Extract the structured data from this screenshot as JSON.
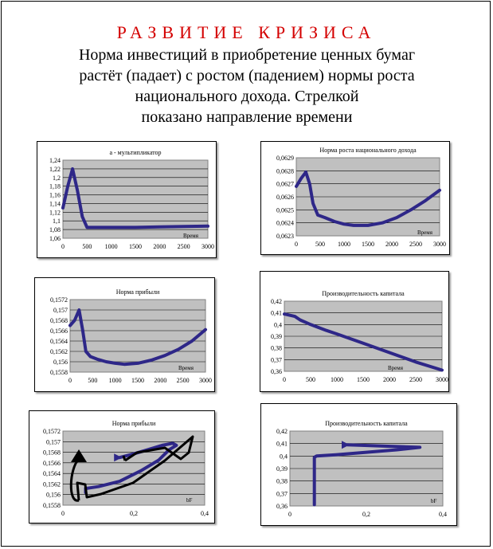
{
  "header": {
    "title": "РАЗВИТИЕ КРИЗИСА",
    "lines": [
      "Норма  инвестиций  в приобретение ценных  бумаг",
      "растёт (падает) с ростом (падением)  нормы роста",
      "национального  дохода. Стрелкой",
      "показано  направление  времени"
    ]
  },
  "chart_data": [
    {
      "type": "line",
      "title": "a - мультипликатор",
      "xlabel": "Время",
      "ylabel": "",
      "xlim": [
        0,
        3000
      ],
      "ylim": [
        1.06,
        1.24
      ],
      "x_ticks": [
        "0",
        "500",
        "1000",
        "1500",
        "2000",
        "2500",
        "3000"
      ],
      "y_ticks": [
        "1,06",
        "1,08",
        "1,1",
        "1,12",
        "1,14",
        "1,16",
        "1,18",
        "1,2",
        "1,22",
        "1,24"
      ],
      "series": [
        {
          "x": [
            0,
            100,
            200,
            300,
            400,
            500,
            600,
            1000,
            1500,
            2000,
            2500,
            3000
          ],
          "y": [
            1.13,
            1.18,
            1.22,
            1.17,
            1.11,
            1.085,
            1.085,
            1.085,
            1.085,
            1.086,
            1.087,
            1.088
          ]
        }
      ]
    },
    {
      "type": "line",
      "title": "Норма роста национального дохода",
      "xlabel": "Время",
      "ylabel": "",
      "xlim": [
        0,
        3000
      ],
      "ylim": [
        0.0623,
        0.0629
      ],
      "x_ticks": [
        "0",
        "500",
        "1000",
        "1500",
        "2000",
        "2500",
        "3000"
      ],
      "y_ticks": [
        "0,0623",
        "0,0624",
        "0,0625",
        "0,0626",
        "0,0627",
        "0,0628",
        "0,0629"
      ],
      "series": [
        {
          "x": [
            0,
            100,
            200,
            280,
            350,
            450,
            600,
            800,
            1000,
            1200,
            1500,
            1800,
            2100,
            2400,
            2700,
            3000
          ],
          "y": [
            0.06268,
            0.06274,
            0.06279,
            0.0627,
            0.06255,
            0.06246,
            0.06244,
            0.06241,
            0.06239,
            0.06238,
            0.06238,
            0.0624,
            0.06244,
            0.0625,
            0.06257,
            0.06265
          ]
        }
      ]
    },
    {
      "type": "line",
      "title": "Норма прибыли",
      "xlabel": "Время",
      "ylabel": "",
      "xlim": [
        0,
        3000
      ],
      "ylim": [
        0.1558,
        0.1572
      ],
      "x_ticks": [
        "0",
        "500",
        "1000",
        "1500",
        "2000",
        "2500",
        "3000"
      ],
      "y_ticks": [
        "0,1558",
        "0,156",
        "0,1562",
        "0,1564",
        "0,1566",
        "0,1568",
        "0,157",
        "0,1572"
      ],
      "series": [
        {
          "x": [
            0,
            100,
            200,
            280,
            350,
            450,
            600,
            800,
            1000,
            1200,
            1500,
            1800,
            2100,
            2400,
            2700,
            3000
          ],
          "y": [
            0.1567,
            0.1568,
            0.157,
            0.1566,
            0.1562,
            0.1561,
            0.15605,
            0.156,
            0.15597,
            0.15595,
            0.15597,
            0.15603,
            0.15612,
            0.15624,
            0.1564,
            0.15662
          ]
        }
      ]
    },
    {
      "type": "line",
      "title": "Производительность капитала",
      "xlabel": "Время",
      "ylabel": "",
      "xlim": [
        0,
        3000
      ],
      "ylim": [
        0.36,
        0.42
      ],
      "x_ticks": [
        "0",
        "500",
        "1000",
        "1500",
        "2000",
        "2500",
        "3000"
      ],
      "y_ticks": [
        "0,36",
        "0,37",
        "0,38",
        "0,39",
        "0,4",
        "0,41",
        "0,42"
      ],
      "series": [
        {
          "x": [
            0,
            100,
            200,
            300,
            500,
            800,
            1000,
            1500,
            2000,
            2500,
            3000
          ],
          "y": [
            0.409,
            0.408,
            0.407,
            0.404,
            0.4,
            0.395,
            0.392,
            0.384,
            0.376,
            0.368,
            0.361
          ]
        }
      ]
    },
    {
      "type": "line",
      "title": "Норма прибыли",
      "xlabel": "bF",
      "ylabel": "",
      "xlim": [
        0,
        0.4
      ],
      "ylim": [
        0.1558,
        0.1572
      ],
      "x_ticks": [
        "0",
        "0,2",
        "0,4"
      ],
      "y_ticks": [
        "0,1558",
        "0,156",
        "0,1562",
        "0,1564",
        "0,1566",
        "0,1568",
        "0,157",
        "0,1572"
      ],
      "series": [
        {
          "x": [
            0.064,
            0.064,
            0.07,
            0.1,
            0.16,
            0.22,
            0.27,
            0.3,
            0.32,
            0.31,
            0.28,
            0.24,
            0.2,
            0.16
          ],
          "y": [
            0.15604,
            0.15612,
            0.15612,
            0.15615,
            0.15625,
            0.15645,
            0.15665,
            0.15685,
            0.15693,
            0.15697,
            0.15693,
            0.15685,
            0.15677,
            0.1567
          ]
        }
      ]
    },
    {
      "type": "line",
      "title": "Производительность капитала",
      "xlabel": "bF",
      "ylabel": "",
      "xlim": [
        0,
        0.4
      ],
      "ylim": [
        0.36,
        0.42
      ],
      "x_ticks": [
        "0",
        "0,2",
        "0,4"
      ],
      "y_ticks": [
        "0,36",
        "0,37",
        "0,38",
        "0,39",
        "0,4",
        "0,41",
        "0,42"
      ],
      "series": [
        {
          "x": [
            0.064,
            0.064,
            0.07,
            0.12,
            0.2,
            0.28,
            0.34,
            0.15
          ],
          "y": [
            0.361,
            0.399,
            0.4,
            0.401,
            0.403,
            0.405,
            0.407,
            0.409
          ]
        }
      ]
    }
  ]
}
